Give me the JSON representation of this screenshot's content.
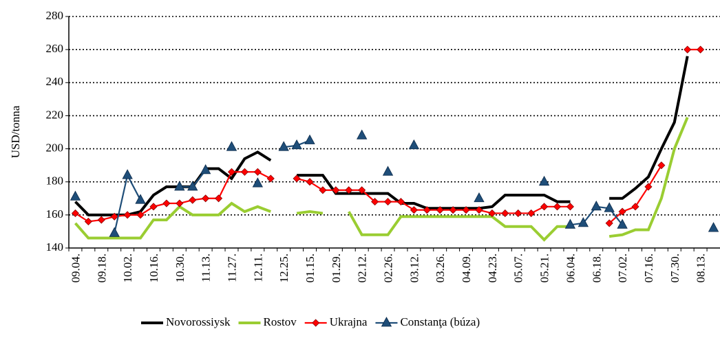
{
  "chart_data": {
    "type": "line",
    "y_label": "USD/tonna",
    "categories": [
      "09.04.",
      null,
      "09.18.",
      null,
      "10.02.",
      null,
      "10.16.",
      null,
      "10.30.",
      null,
      "11.13.",
      null,
      "11.27.",
      null,
      "12.11.",
      null,
      "12.25.",
      null,
      "01.15.",
      null,
      "01.29.",
      null,
      "02.12.",
      null,
      "02.26.",
      null,
      "03.12.",
      null,
      "03.26.",
      null,
      "04.09.",
      null,
      "04.23.",
      null,
      "05.07.",
      null,
      "05.21.",
      null,
      "06.04.",
      null,
      "06.18.",
      null,
      "07.02.",
      null,
      "07.16.",
      null,
      "07.30.",
      null,
      "08.13.",
      null
    ],
    "ylim": [
      140,
      280
    ],
    "yticks": [
      140,
      160,
      180,
      200,
      220,
      240,
      260,
      280
    ],
    "grid": true,
    "series": [
      {
        "name": "Novorossiysk",
        "color": "#000000",
        "marker": "none",
        "values": [
          168,
          160,
          160,
          160,
          160,
          162,
          172,
          177,
          177,
          177,
          188,
          188,
          182,
          194,
          198,
          193,
          null,
          184,
          184,
          184,
          173,
          173,
          173,
          173,
          173,
          167,
          167,
          164,
          164,
          164,
          164,
          164,
          165,
          172,
          172,
          172,
          172,
          168,
          168,
          null,
          null,
          170,
          170,
          176,
          183,
          200,
          216,
          256,
          null,
          null
        ]
      },
      {
        "name": "Rostov",
        "color": "#9acd32",
        "marker": "none",
        "values": [
          155,
          146,
          146,
          146,
          146,
          146,
          157,
          157,
          165,
          160,
          160,
          160,
          167,
          162,
          165,
          162,
          null,
          161,
          162,
          161,
          null,
          162,
          148,
          148,
          148,
          159,
          159,
          159,
          159,
          159,
          159,
          159,
          159,
          153,
          153,
          153,
          145,
          153,
          153,
          null,
          null,
          147,
          148,
          151,
          151,
          170,
          200,
          219,
          null,
          null
        ]
      },
      {
        "name": "Ukrajna",
        "color": "#ff0000",
        "marker": "diamond",
        "values": [
          161,
          156,
          157,
          159,
          160,
          160,
          165,
          167,
          167,
          169,
          170,
          170,
          186,
          186,
          186,
          182,
          null,
          182,
          180,
          175,
          175,
          175,
          175,
          168,
          168,
          168,
          163,
          163,
          163,
          163,
          163,
          163,
          161,
          161,
          161,
          161,
          165,
          165,
          165,
          null,
          null,
          155,
          162,
          165,
          177,
          190,
          null,
          260,
          260,
          null
        ]
      },
      {
        "name": "Constanţa (búza)",
        "color": "#1f4e79",
        "marker": "triangle",
        "values": [
          171,
          null,
          null,
          149,
          184,
          169,
          null,
          null,
          177,
          177,
          187,
          null,
          201,
          null,
          179,
          null,
          201,
          202,
          205,
          null,
          null,
          null,
          208,
          null,
          186,
          null,
          202,
          null,
          null,
          null,
          null,
          170,
          null,
          null,
          null,
          null,
          180,
          null,
          154,
          155,
          165,
          164,
          154,
          null,
          null,
          null,
          null,
          null,
          null,
          152
        ]
      }
    ]
  }
}
